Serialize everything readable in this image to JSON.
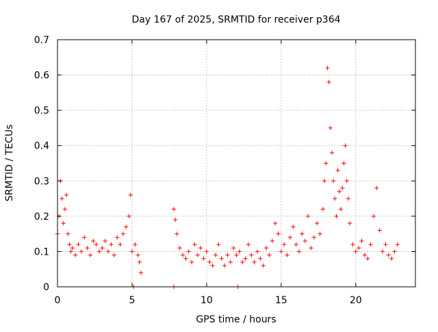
{
  "chart_data": {
    "type": "scatter",
    "title": "Day 167 of 2025, SRMTID for receiver p364",
    "xlabel": "GPS time / hours",
    "ylabel": "SRMTID / TECUs",
    "xlim": [
      0,
      24
    ],
    "ylim": [
      0,
      0.7
    ],
    "x_ticks": [
      0,
      5,
      10,
      15,
      20
    ],
    "x_tick_labels": [
      "0",
      "5",
      "10",
      "15",
      "20"
    ],
    "y_ticks": [
      0,
      0.1,
      0.2,
      0.3,
      0.4,
      0.5,
      0.6,
      0.7
    ],
    "y_tick_labels": [
      "0",
      "0.1",
      "0.2",
      "0.3",
      "0.4",
      "0.5",
      "0.6",
      "0.7"
    ],
    "grid": true,
    "marker": "plus",
    "color": "#ff0000",
    "series": [
      {
        "name": "SRMTID",
        "x": [
          0.0,
          0.1,
          0.2,
          0.3,
          0.4,
          0.5,
          0.6,
          0.7,
          0.8,
          0.9,
          1.0,
          1.2,
          1.4,
          1.6,
          1.8,
          2.0,
          2.2,
          2.4,
          2.6,
          2.8,
          3.0,
          3.2,
          3.4,
          3.6,
          3.8,
          4.0,
          4.2,
          4.4,
          4.6,
          4.8,
          4.9,
          5.0,
          5.2,
          5.4,
          5.5,
          5.6,
          7.8,
          7.9,
          8.0,
          8.2,
          8.4,
          8.6,
          8.8,
          9.0,
          9.2,
          9.4,
          9.6,
          9.8,
          10.0,
          10.2,
          10.4,
          10.6,
          10.8,
          11.0,
          11.2,
          11.4,
          11.6,
          11.8,
          12.0,
          12.2,
          12.4,
          12.6,
          12.8,
          13.0,
          13.2,
          13.4,
          13.6,
          13.8,
          14.0,
          14.2,
          14.4,
          14.6,
          14.8,
          15.0,
          15.2,
          15.4,
          15.6,
          15.8,
          16.0,
          16.2,
          16.4,
          16.6,
          16.8,
          17.0,
          17.2,
          17.4,
          17.6,
          17.8,
          17.9,
          18.0,
          18.1,
          18.2,
          18.3,
          18.4,
          18.5,
          18.6,
          18.7,
          18.8,
          18.9,
          19.0,
          19.1,
          19.2,
          19.3,
          19.4,
          19.5,
          19.6,
          19.8,
          20.0,
          20.2,
          20.4,
          20.6,
          20.8,
          21.0,
          21.2,
          21.4,
          21.6,
          21.8,
          22.0,
          22.2,
          22.4,
          22.6,
          22.8,
          5.1,
          7.8,
          12.1
        ],
        "y": [
          0.15,
          0.2,
          0.3,
          0.25,
          0.18,
          0.22,
          0.26,
          0.15,
          0.12,
          0.1,
          0.11,
          0.09,
          0.12,
          0.1,
          0.14,
          0.11,
          0.09,
          0.13,
          0.12,
          0.1,
          0.11,
          0.13,
          0.1,
          0.12,
          0.09,
          0.14,
          0.12,
          0.15,
          0.17,
          0.2,
          0.26,
          0.1,
          0.12,
          0.09,
          0.07,
          0.04,
          0.22,
          0.19,
          0.15,
          0.11,
          0.09,
          0.08,
          0.1,
          0.07,
          0.12,
          0.09,
          0.11,
          0.08,
          0.1,
          0.07,
          0.06,
          0.09,
          0.12,
          0.08,
          0.06,
          0.09,
          0.07,
          0.11,
          0.09,
          0.1,
          0.07,
          0.08,
          0.12,
          0.09,
          0.07,
          0.1,
          0.08,
          0.06,
          0.11,
          0.09,
          0.13,
          0.18,
          0.15,
          0.1,
          0.12,
          0.09,
          0.14,
          0.17,
          0.12,
          0.1,
          0.15,
          0.13,
          0.2,
          0.11,
          0.14,
          0.18,
          0.15,
          0.22,
          0.3,
          0.35,
          0.62,
          0.58,
          0.45,
          0.38,
          0.3,
          0.25,
          0.2,
          0.33,
          0.27,
          0.22,
          0.28,
          0.35,
          0.4,
          0.3,
          0.25,
          0.18,
          0.12,
          0.1,
          0.11,
          0.13,
          0.09,
          0.08,
          0.12,
          0.2,
          0.28,
          0.16,
          0.1,
          0.12,
          0.09,
          0.08,
          0.1,
          0.12,
          0.0,
          0.0,
          0.0
        ]
      }
    ]
  }
}
